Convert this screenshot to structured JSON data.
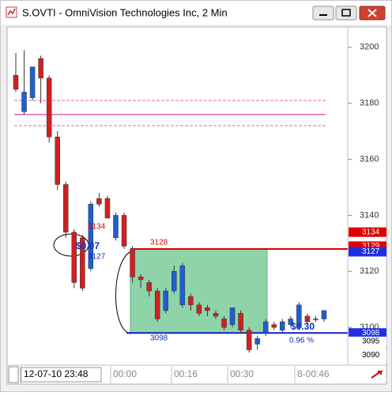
{
  "chart_data": {
    "type": "candlestick",
    "title": "S.OVTI - OmniVision Technologies Inc, 2 Min",
    "open": [
      3190,
      3177,
      3182,
      3196,
      3189,
      3168,
      3151,
      3134,
      3132,
      3121,
      3146,
      3146,
      3132,
      3140,
      3128,
      3118,
      3116,
      3113,
      3106,
      3113,
      3108,
      3111,
      3108,
      3107,
      3105,
      3103,
      3101,
      3105,
      3099,
      3094,
      3098,
      3101,
      3099,
      3101,
      3100,
      3104,
      3103,
      3103
    ],
    "high": [
      3198,
      3199,
      3193,
      3197,
      3190,
      3170,
      3152,
      3135,
      3133,
      3145,
      3148,
      3147,
      3141,
      3141,
      3129,
      3119,
      3117,
      3114,
      3114,
      3122,
      3123,
      3112,
      3109,
      3108,
      3106,
      3104,
      3107,
      3106,
      3100,
      3097,
      3103,
      3102,
      3103,
      3104,
      3109,
      3105,
      3104,
      3106
    ],
    "low": [
      3184,
      3176,
      3181,
      3180,
      3166,
      3149,
      3132,
      3114,
      3113,
      3120,
      3143,
      3139,
      3131,
      3128,
      3116,
      3114,
      3111,
      3102,
      3105,
      3112,
      3107,
      3106,
      3104,
      3104,
      3103,
      3099,
      3100,
      3098,
      3091,
      3092,
      3097,
      3099,
      3098,
      3100,
      3099,
      3101,
      3102,
      3102
    ],
    "close": [
      3185,
      3184,
      3193,
      3189,
      3168,
      3151,
      3134,
      3116,
      3114,
      3144,
      3144,
      3139,
      3140,
      3129,
      3118,
      3117,
      3113,
      3103,
      3113,
      3120,
      3122,
      3108,
      3105,
      3106,
      3104,
      3100,
      3107,
      3099,
      3092,
      3096,
      3102,
      3100,
      3102,
      3103,
      3108,
      3102,
      3103,
      3106
    ],
    "up_color": "#1f5fd0",
    "down_color": "#d02020",
    "ylim": [
      3086.5,
      3207
    ],
    "yticks": [
      3100,
      3120,
      3140,
      3160,
      3180,
      3200
    ],
    "x_labels": [
      "12-07-10 23:48",
      "00:00",
      "00:16",
      "00:30",
      "8-00:46"
    ],
    "levels": [
      {
        "value": 3181,
        "color": "#e060b0",
        "dashed": true
      },
      {
        "value": 3176,
        "color": "#e060b0",
        "dashed": false
      },
      {
        "value": 3172,
        "color": "#e060b0",
        "dashed": true
      }
    ],
    "zone": [
      3098,
      3128
    ],
    "zone_color": "#8fd4a8",
    "trade_lines": [
      {
        "value": 3128,
        "color": "#e00000"
      },
      {
        "value": 3098,
        "color": "#1020c0"
      }
    ],
    "price_tags": [
      3134,
      3129,
      3127,
      3098,
      3095,
      3090
    ],
    "price_tag_colors": [
      "#e00000",
      "#e00000",
      "#2030e0",
      "#2030e0",
      "#ffffff",
      "#ffffff"
    ],
    "annotations": [
      {
        "text": "3134",
        "color": "#e00000"
      },
      {
        "text": "$0.07",
        "color": "#1030c0"
      },
      {
        "text": "3127",
        "color": "#1030c0"
      },
      {
        "text": "3128",
        "color": "#e00000"
      },
      {
        "text": "3098",
        "color": "#1030c0"
      },
      {
        "text": "$0.30",
        "color": "#1030c0"
      },
      {
        "text": "0.96 %",
        "color": "#1030c0"
      }
    ]
  }
}
